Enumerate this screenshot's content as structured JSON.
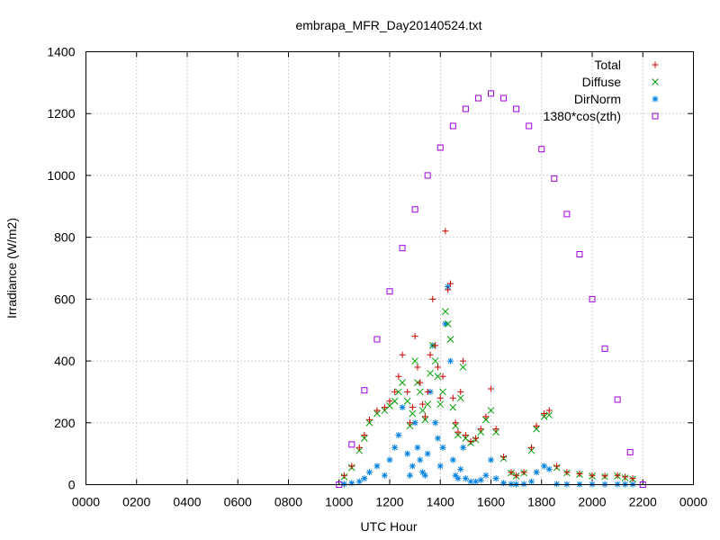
{
  "chart_data": {
    "type": "scatter",
    "title": "embrapa_MFR_Day20140524.txt",
    "xlabel": "UTC Hour",
    "ylabel": "Irradiance (W/m2)",
    "xlim": [
      0,
      24
    ],
    "ylim": [
      0,
      1400
    ],
    "x_ticks": [
      {
        "value": 0,
        "label": "0000"
      },
      {
        "value": 2,
        "label": "0200"
      },
      {
        "value": 4,
        "label": "0400"
      },
      {
        "value": 6,
        "label": "0600"
      },
      {
        "value": 8,
        "label": "0800"
      },
      {
        "value": 10,
        "label": "1000"
      },
      {
        "value": 12,
        "label": "1200"
      },
      {
        "value": 14,
        "label": "1400"
      },
      {
        "value": 16,
        "label": "1600"
      },
      {
        "value": 18,
        "label": "1800"
      },
      {
        "value": 20,
        "label": "2000"
      },
      {
        "value": 22,
        "label": "2200"
      },
      {
        "value": 24,
        "label": "0000"
      }
    ],
    "y_ticks": [
      0,
      200,
      400,
      600,
      800,
      1000,
      1200,
      1400
    ],
    "grid": true,
    "legend_position": "top-right",
    "series": [
      {
        "name": "Total",
        "marker": "plus",
        "color": "#cc0000",
        "x": [
          10.2,
          10.5,
          10.8,
          11.0,
          11.2,
          11.5,
          11.8,
          12.0,
          12.2,
          12.35,
          12.5,
          12.7,
          12.8,
          12.9,
          13.0,
          13.1,
          13.2,
          13.3,
          13.4,
          13.5,
          13.6,
          13.7,
          13.8,
          13.9,
          14.0,
          14.1,
          14.2,
          14.3,
          14.4,
          14.5,
          14.6,
          14.7,
          14.8,
          14.9,
          15.0,
          15.2,
          15.4,
          15.6,
          15.8,
          16.0,
          16.2,
          16.5,
          16.8,
          17.0,
          17.3,
          17.6,
          17.8,
          18.1,
          18.3,
          18.6,
          19.0,
          19.5,
          20.0,
          20.5,
          21.0,
          21.3,
          21.6
        ],
        "y": [
          30,
          60,
          120,
          160,
          210,
          240,
          250,
          270,
          300,
          350,
          420,
          300,
          200,
          250,
          480,
          380,
          330,
          260,
          220,
          300,
          420,
          600,
          450,
          380,
          280,
          350,
          820,
          630,
          650,
          280,
          200,
          170,
          300,
          400,
          160,
          140,
          150,
          180,
          220,
          310,
          180,
          90,
          40,
          30,
          40,
          120,
          190,
          230,
          240,
          60,
          40,
          35,
          30,
          28,
          30,
          25,
          20
        ]
      },
      {
        "name": "Diffuse",
        "marker": "x",
        "color": "#00a000",
        "x": [
          10.2,
          10.5,
          10.8,
          11.0,
          11.2,
          11.5,
          11.8,
          12.0,
          12.2,
          12.35,
          12.5,
          12.7,
          12.8,
          12.9,
          13.0,
          13.1,
          13.2,
          13.3,
          13.4,
          13.5,
          13.6,
          13.7,
          13.8,
          13.9,
          14.0,
          14.1,
          14.2,
          14.3,
          14.4,
          14.5,
          14.6,
          14.7,
          14.8,
          14.9,
          15.0,
          15.2,
          15.4,
          15.6,
          15.8,
          16.0,
          16.2,
          16.5,
          16.8,
          17.0,
          17.3,
          17.6,
          17.8,
          18.1,
          18.3,
          18.6,
          19.0,
          19.5,
          20.0,
          20.5,
          21.0,
          21.3,
          21.6
        ],
        "y": [
          25,
          55,
          110,
          150,
          200,
          230,
          240,
          255,
          270,
          300,
          330,
          270,
          190,
          230,
          400,
          330,
          300,
          240,
          210,
          260,
          360,
          450,
          400,
          350,
          260,
          300,
          560,
          520,
          470,
          250,
          190,
          160,
          280,
          380,
          150,
          135,
          145,
          170,
          210,
          240,
          170,
          85,
          38,
          28,
          38,
          110,
          180,
          220,
          225,
          55,
          38,
          33,
          28,
          26,
          28,
          22,
          18
        ]
      },
      {
        "name": "DirNorm",
        "marker": "star",
        "color": "#0080e0",
        "x": [
          10.2,
          10.5,
          10.8,
          11.0,
          11.2,
          11.5,
          11.8,
          12.0,
          12.2,
          12.35,
          12.5,
          12.7,
          12.8,
          12.9,
          13.0,
          13.1,
          13.2,
          13.3,
          13.4,
          13.5,
          13.6,
          13.7,
          13.8,
          13.9,
          14.0,
          14.1,
          14.2,
          14.3,
          14.4,
          14.5,
          14.6,
          14.7,
          14.8,
          14.9,
          15.0,
          15.2,
          15.4,
          15.6,
          15.8,
          16.0,
          16.2,
          16.5,
          16.8,
          17.0,
          17.3,
          17.6,
          17.8,
          18.1,
          18.3,
          18.6,
          19.0,
          19.5,
          20.0,
          20.5,
          21.0,
          21.3,
          21.6
        ],
        "y": [
          2,
          5,
          10,
          20,
          40,
          60,
          30,
          80,
          120,
          160,
          250,
          100,
          30,
          60,
          200,
          120,
          80,
          40,
          30,
          100,
          300,
          450,
          200,
          150,
          60,
          120,
          520,
          640,
          400,
          80,
          30,
          20,
          50,
          120,
          20,
          10,
          10,
          15,
          30,
          80,
          20,
          5,
          2,
          1,
          2,
          10,
          40,
          60,
          50,
          2,
          1,
          1,
          1,
          1,
          1,
          1,
          1
        ]
      },
      {
        "name": "1380*cos(zth)",
        "marker": "square",
        "color": "#a000e0",
        "x": [
          10.0,
          10.5,
          11.0,
          11.5,
          12.0,
          12.5,
          13.0,
          13.5,
          14.0,
          14.5,
          15.0,
          15.5,
          16.0,
          16.5,
          17.0,
          17.5,
          18.0,
          18.5,
          19.0,
          19.5,
          20.0,
          20.5,
          21.0,
          21.5,
          22.0
        ],
        "y": [
          0,
          130,
          305,
          470,
          625,
          765,
          890,
          1000,
          1090,
          1160,
          1215,
          1250,
          1265,
          1250,
          1215,
          1160,
          1085,
          990,
          875,
          745,
          600,
          440,
          275,
          105,
          0
        ]
      }
    ]
  }
}
